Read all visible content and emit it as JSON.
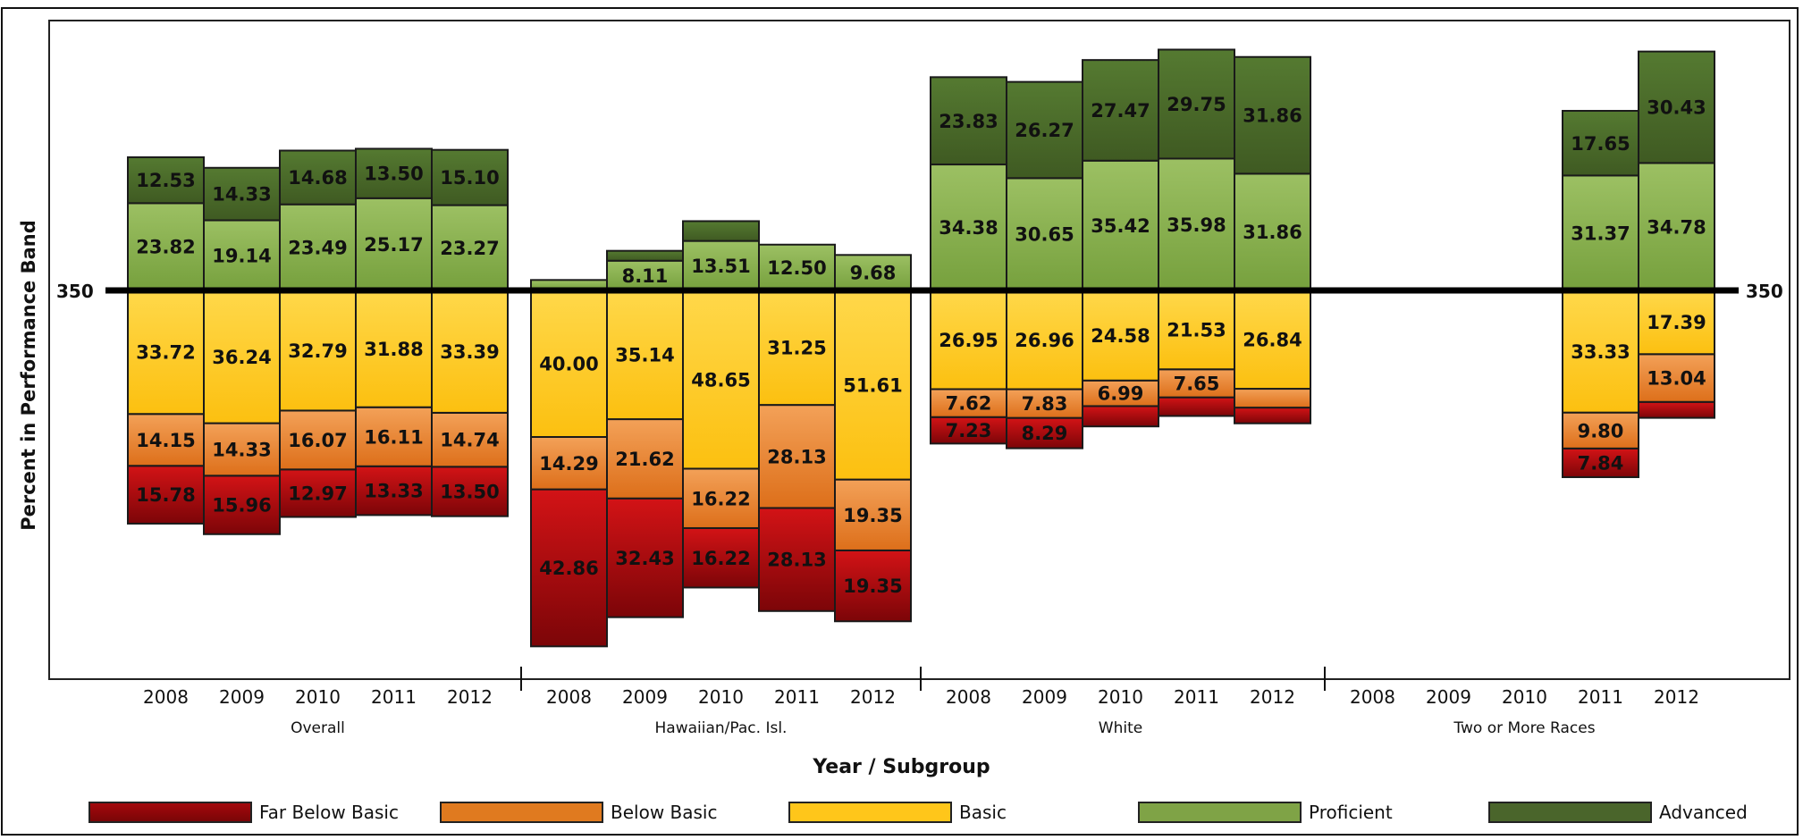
{
  "chart_data": {
    "type": "bar",
    "title": "",
    "ylabel": "Percent in Performance Band",
    "xlabel": "Year / Subgroup",
    "reference_line": {
      "label": "350"
    },
    "bands": [
      "Far Below Basic",
      "Below Basic",
      "Basic",
      "Proficient",
      "Advanced"
    ],
    "band_colors": {
      "Far Below Basic": "#a3080c",
      "Below Basic": "#e8822a",
      "Basic": "#fcc51c",
      "Proficient": "#8db356",
      "Advanced": "#4e6e2c"
    },
    "groups": [
      {
        "name": "Overall",
        "years": [
          {
            "year": "2008",
            "far_below_basic": 15.78,
            "below_basic": 14.15,
            "basic": 33.72,
            "proficient": 23.82,
            "advanced": 12.53
          },
          {
            "year": "2009",
            "far_below_basic": 15.96,
            "below_basic": 14.33,
            "basic": 36.24,
            "proficient": 19.14,
            "advanced": 14.33
          },
          {
            "year": "2010",
            "far_below_basic": 12.97,
            "below_basic": 16.07,
            "basic": 32.79,
            "proficient": 23.49,
            "advanced": 14.68
          },
          {
            "year": "2011",
            "far_below_basic": 13.33,
            "below_basic": 16.11,
            "basic": 31.88,
            "proficient": 25.17,
            "advanced": 13.5
          },
          {
            "year": "2012",
            "far_below_basic": 13.5,
            "below_basic": 14.74,
            "basic": 33.39,
            "proficient": 23.27,
            "advanced": 15.1
          }
        ]
      },
      {
        "name": "Hawaiian/Pac. Isl.",
        "years": [
          {
            "year": "2008",
            "far_below_basic": 42.86,
            "below_basic": 14.29,
            "basic": 40.0,
            "proficient": 2.85,
            "advanced": 0
          },
          {
            "year": "2009",
            "far_below_basic": 32.43,
            "below_basic": 21.62,
            "basic": 35.14,
            "proficient": 8.11,
            "advanced": 2.7
          },
          {
            "year": "2010",
            "far_below_basic": 16.22,
            "below_basic": 16.22,
            "basic": 48.65,
            "proficient": 13.51,
            "advanced": 5.4
          },
          {
            "year": "2011",
            "far_below_basic": 28.13,
            "below_basic": 28.13,
            "basic": 31.25,
            "proficient": 12.5,
            "advanced": 0
          },
          {
            "year": "2012",
            "far_below_basic": 19.35,
            "below_basic": 19.35,
            "basic": 51.61,
            "proficient": 9.68,
            "advanced": 0
          }
        ]
      },
      {
        "name": "White",
        "years": [
          {
            "year": "2008",
            "far_below_basic": 7.23,
            "below_basic": 7.62,
            "basic": 26.95,
            "proficient": 34.38,
            "advanced": 23.83
          },
          {
            "year": "2009",
            "far_below_basic": 8.29,
            "below_basic": 7.83,
            "basic": 26.96,
            "proficient": 30.65,
            "advanced": 26.27
          },
          {
            "year": "2010",
            "far_below_basic": 5.55,
            "below_basic": 6.99,
            "basic": 24.58,
            "proficient": 35.42,
            "advanced": 27.47
          },
          {
            "year": "2011",
            "far_below_basic": 5.09,
            "below_basic": 7.65,
            "basic": 21.53,
            "proficient": 35.98,
            "advanced": 29.75
          },
          {
            "year": "2012",
            "far_below_basic": 4.3,
            "below_basic": 5.14,
            "basic": 26.84,
            "proficient": 31.86,
            "advanced": 31.86
          }
        ]
      },
      {
        "name": "Two or More Races",
        "years": [
          {
            "year": "2008",
            "far_below_basic": null,
            "below_basic": null,
            "basic": null,
            "proficient": null,
            "advanced": null
          },
          {
            "year": "2009",
            "far_below_basic": null,
            "below_basic": null,
            "basic": null,
            "proficient": null,
            "advanced": null
          },
          {
            "year": "2010",
            "far_below_basic": null,
            "below_basic": null,
            "basic": null,
            "proficient": null,
            "advanced": null
          },
          {
            "year": "2011",
            "far_below_basic": 7.84,
            "below_basic": 9.8,
            "basic": 33.33,
            "proficient": 31.37,
            "advanced": 17.65
          },
          {
            "year": "2012",
            "far_below_basic": 4.35,
            "below_basic": 13.04,
            "basic": 17.39,
            "proficient": 34.78,
            "advanced": 30.43
          }
        ]
      }
    ],
    "data_labels": {
      "Overall": [
        [
          "15.78",
          "14.15",
          "33.72",
          "23.82",
          "12.53"
        ],
        [
          "15.96",
          "14.33",
          "36.24",
          "19.14",
          "14.33"
        ],
        [
          "12.97",
          "16.07",
          "32.79",
          "23.49",
          "14.68"
        ],
        [
          "13.33",
          "16.11",
          "31.88",
          "25.17",
          "13.50"
        ],
        [
          "13.50",
          "14.74",
          "33.39",
          "23.27",
          "15.10"
        ]
      ],
      "Hawaiian/Pac. Isl.": [
        [
          "42.86",
          "14.29",
          "40.00",
          "",
          ""
        ],
        [
          "32.43",
          "21.62",
          "35.14",
          "8.11",
          ""
        ],
        [
          "16.22",
          "16.22",
          "48.65",
          "13.51",
          ""
        ],
        [
          "28.13",
          "28.13",
          "31.25",
          "12.50",
          ""
        ],
        [
          "19.35",
          "19.35",
          "51.61",
          "9.68",
          ""
        ]
      ],
      "White": [
        [
          "7.23",
          "7.62",
          "26.95",
          "34.38",
          "23.83"
        ],
        [
          "8.29",
          "7.83",
          "26.96",
          "30.65",
          "26.27"
        ],
        [
          "",
          "6.99",
          "24.58",
          "35.42",
          "27.47"
        ],
        [
          "",
          "7.65",
          "21.53",
          "35.98",
          "29.75"
        ],
        [
          "",
          "",
          "26.84",
          "31.86",
          "31.86"
        ]
      ],
      "Two or More Races": [
        [
          "",
          "",
          "",
          "",
          ""
        ],
        [
          "",
          "",
          "",
          "",
          ""
        ],
        [
          "",
          "",
          "",
          "",
          ""
        ],
        [
          "7.84",
          "9.80",
          "33.33",
          "31.37",
          "17.65"
        ],
        [
          "",
          "13.04",
          "17.39",
          "34.78",
          "30.43"
        ]
      ]
    },
    "legend_position": "bottom",
    "grid": false
  }
}
